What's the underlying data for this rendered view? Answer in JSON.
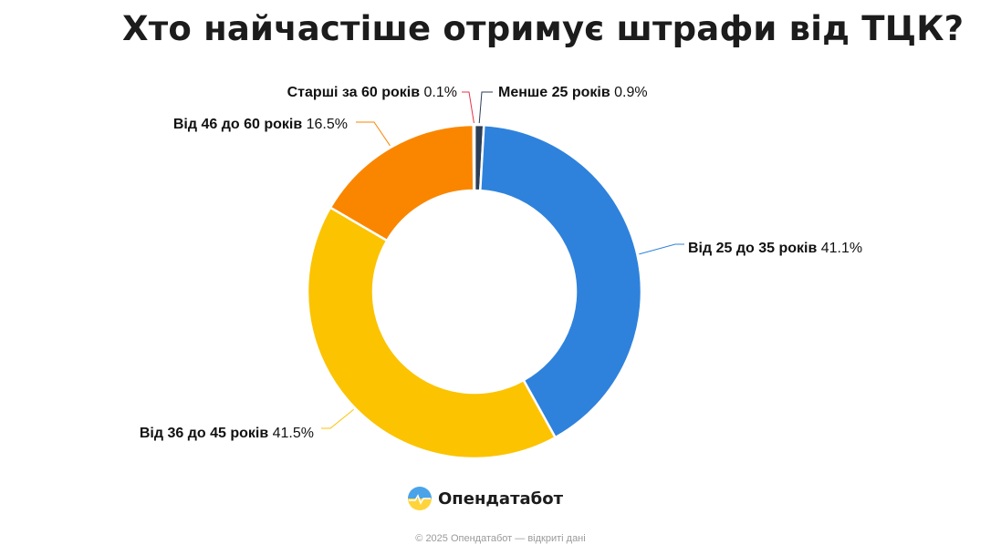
{
  "title": "Хто найчастіше отримує штрафи від ТЦК?",
  "brand": {
    "name": "Опендатабот",
    "logo_icon": "opendatabot-logo-icon"
  },
  "footer": "© 2025 Опендатабот — відкриті дані",
  "chart_data": {
    "type": "pie",
    "variant": "donut",
    "title": "Хто найчастіше отримує штрафи від ТЦК?",
    "unit": "%",
    "series": [
      {
        "label": "Менше 25 років",
        "value": 0.9,
        "value_label": "0.9%",
        "color": "#2c3e57"
      },
      {
        "label": "Від 25 до 35 років",
        "value": 41.1,
        "value_label": "41.1%",
        "color": "#2e82dc"
      },
      {
        "label": "Від 36 до 45 років",
        "value": 41.5,
        "value_label": "41.5%",
        "color": "#fcc300"
      },
      {
        "label": "Від 46 до 60 років",
        "value": 16.5,
        "value_label": "16.5%",
        "color": "#fa8600"
      },
      {
        "label": "Старші за 60 років",
        "value": 0.1,
        "value_label": "0.1%",
        "color": "#e8334a"
      }
    ]
  }
}
